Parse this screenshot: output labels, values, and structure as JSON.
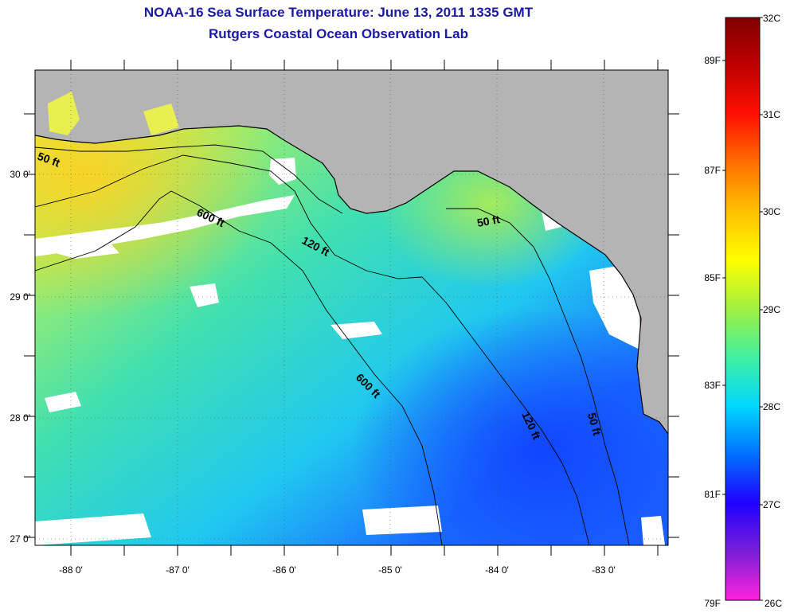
{
  "title": "NOAA-16 Sea Surface Temperature:  June 13, 2011 1335 GMT",
  "subtitle": "Rutgers Coastal Ocean Observation Lab",
  "colors": {
    "land": "#b4b4b4",
    "no_data": "#ffffff",
    "coastline": "#000000"
  },
  "map": {
    "longitude_labels": [
      "-88 0'",
      "-87 0'",
      "-86 0'",
      "-85 0'",
      "-84 0'",
      "-83 0'"
    ],
    "latitude_labels": [
      "30 0'",
      "29 0'",
      "28 0'",
      "27 0'"
    ],
    "contour_labels": [
      "50 ft",
      "600 ft",
      "120 ft",
      "50 ft",
      "600 ft",
      "120 ft",
      "50 ft"
    ]
  },
  "colorbar": {
    "celsius_labels": [
      "32C",
      "31C",
      "30C",
      "29C",
      "28C",
      "27C",
      "26C"
    ],
    "fahrenheit_labels": [
      "89F",
      "87F",
      "85F",
      "83F",
      "81F",
      "79F"
    ],
    "gradient_stops": [
      "#ff22dd",
      "#7a20d8",
      "#2000ff",
      "#0070ff",
      "#00d8ff",
      "#40f0a0",
      "#a0f040",
      "#ffff00",
      "#ffc000",
      "#ff7000",
      "#ff1000",
      "#c00000",
      "#800000"
    ]
  }
}
